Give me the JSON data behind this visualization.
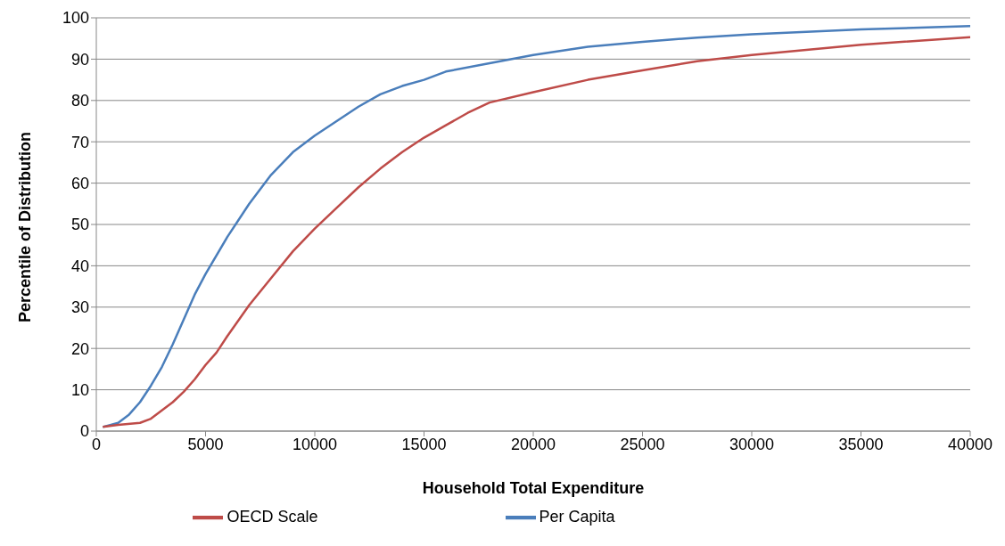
{
  "chart_data": {
    "type": "line",
    "xlabel": "Household Total Expenditure",
    "ylabel": "Percentile of Distribution",
    "xlim": [
      0,
      40000
    ],
    "xticks": [
      0,
      5000,
      10000,
      15000,
      20000,
      25000,
      30000,
      35000,
      40000
    ],
    "ylim": [
      0,
      100
    ],
    "yticks": [
      0,
      10,
      20,
      30,
      40,
      50,
      60,
      70,
      80,
      90,
      100
    ],
    "grid": "y",
    "legend": "bottom",
    "marker": "none",
    "series": [
      {
        "name": "Per Capita",
        "color": "#4a7ebb",
        "x": [
          300,
          1000,
          1500,
          2000,
          2500,
          3000,
          3500,
          4000,
          4500,
          5000,
          6000,
          7000,
          8000,
          9000,
          10000,
          11000,
          12000,
          13000,
          14000,
          15000,
          16000,
          18000,
          20000,
          22500,
          25000,
          27500,
          30000,
          35000,
          40000
        ],
        "values": [
          1,
          2,
          4,
          7,
          11,
          15.5,
          21,
          27,
          33,
          38,
          47,
          55,
          62,
          67.5,
          71.5,
          75,
          78.5,
          81.5,
          83.5,
          85,
          87,
          89,
          91,
          93,
          94.2,
          95.2,
          96,
          97.2,
          98
        ]
      },
      {
        "name": "OECD Scale",
        "color": "#be4b48",
        "x": [
          300,
          1000,
          2000,
          2500,
          3000,
          3500,
          4000,
          4500,
          5000,
          5500,
          6000,
          7000,
          8000,
          9000,
          10000,
          11000,
          12000,
          13000,
          14000,
          15000,
          16000,
          17000,
          18000,
          20000,
          22500,
          25000,
          27500,
          30000,
          35000,
          40000
        ],
        "values": [
          1,
          1.5,
          2,
          3,
          5,
          7,
          9.5,
          12.5,
          16,
          19,
          23,
          30.5,
          37,
          43.5,
          49,
          54,
          59,
          63.5,
          67.5,
          71,
          74,
          77,
          79.5,
          82,
          85,
          87.3,
          89.5,
          91,
          93.5,
          95.3
        ]
      }
    ]
  }
}
